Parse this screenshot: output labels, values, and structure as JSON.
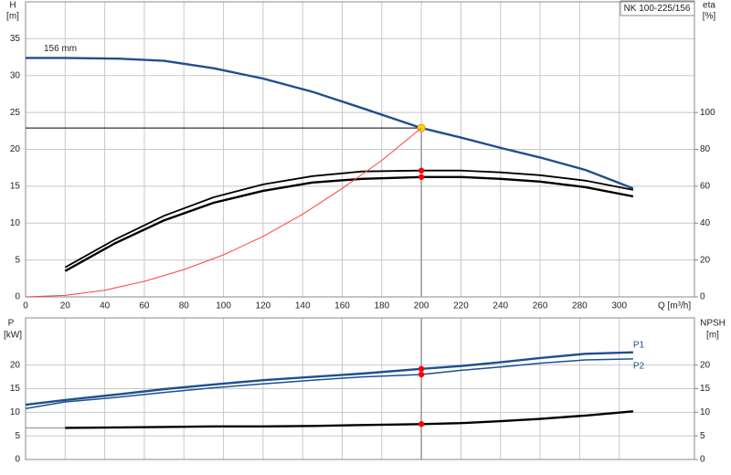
{
  "chart_data": [
    {
      "type": "line",
      "title": "NK 100-225/156",
      "ylabel": "H",
      "yunit": "[m]",
      "y2label": "eta",
      "y2unit": "[%]",
      "xlabel": "Q [m³/h]",
      "xlim": [
        0,
        338
      ],
      "xticks": [
        0,
        20,
        40,
        60,
        80,
        100,
        120,
        140,
        160,
        180,
        200,
        220,
        240,
        260,
        280,
        300
      ],
      "ylim": [
        0,
        40
      ],
      "yticks": [
        0,
        5,
        10,
        15,
        20,
        25,
        30,
        35
      ],
      "y2lim": [
        0,
        160
      ],
      "y2ticks": [
        0,
        20,
        40,
        60,
        80,
        100
      ],
      "grid": true,
      "operating_point": {
        "x": 200
      },
      "series": [
        {
          "name": "156 mm",
          "color": "#1f4f8f",
          "point_color": "#ffd700",
          "x": [
            0,
            20,
            47,
            70,
            95,
            120,
            145,
            170,
            200,
            220,
            240,
            260,
            283,
            307
          ],
          "values": [
            32.4,
            32.4,
            32.3,
            32.0,
            31.0,
            29.6,
            27.8,
            25.6,
            22.9,
            21.6,
            20.2,
            18.9,
            17.2,
            14.7
          ]
        },
        {
          "color": "#000000",
          "axis": "y2",
          "point_color": "#ff0000",
          "x": [
            20,
            45,
            70,
            95,
            120,
            145,
            170,
            200,
            220,
            240,
            260,
            283,
            307
          ],
          "values": [
            16,
            31,
            44,
            54,
            61,
            65.5,
            68,
            68.5,
            68.5,
            67.5,
            66,
            63,
            58
          ]
        },
        {
          "color": "#000000",
          "axis": "y2",
          "point_color": "#ff0000",
          "x": [
            20,
            45,
            70,
            95,
            120,
            145,
            170,
            200,
            220,
            240,
            260,
            283,
            307
          ],
          "values": [
            14,
            29,
            41.5,
            51,
            57.5,
            62,
            64,
            65,
            65,
            64,
            62.5,
            59.5,
            54.5
          ]
        },
        {
          "color": "#ff4040",
          "x": [
            0,
            20,
            40,
            60,
            80,
            100,
            120,
            140,
            160,
            180,
            200
          ],
          "values": [
            0,
            0.2,
            0.9,
            2.1,
            3.7,
            5.7,
            8.2,
            11.2,
            14.7,
            18.5,
            22.9
          ]
        }
      ]
    },
    {
      "type": "line",
      "ylabel": "P",
      "yunit": "[kW]",
      "y2label": "NPSH",
      "y2unit": "[m]",
      "xlim": [
        0,
        338
      ],
      "xticks": [
        0,
        20,
        40,
        60,
        80,
        100,
        120,
        140,
        160,
        180,
        200,
        220,
        240,
        260,
        280,
        300
      ],
      "xtick_labels": false,
      "ylim": [
        0,
        30
      ],
      "yticks": [
        0,
        5,
        10,
        15,
        20
      ],
      "y2lim": [
        0,
        30
      ],
      "y2ticks": [
        0,
        5,
        10,
        15,
        20
      ],
      "grid": true,
      "operating_point": {
        "x": 200
      },
      "series": [
        {
          "name": "P1",
          "color": "#1f4f8f",
          "point_color": "#ff0000",
          "x": [
            0,
            20,
            47,
            70,
            95,
            120,
            145,
            170,
            200,
            220,
            240,
            260,
            283,
            307
          ],
          "values": [
            11.6,
            12.6,
            13.8,
            14.9,
            15.9,
            16.8,
            17.5,
            18.2,
            19.2,
            19.8,
            20.6,
            21.5,
            22.4,
            22.7
          ]
        },
        {
          "name": "P2",
          "color": "#1f4f8f",
          "point_color": "#ff0000",
          "x": [
            0,
            20,
            47,
            70,
            95,
            120,
            145,
            170,
            200,
            220,
            240,
            260,
            283,
            307
          ],
          "values": [
            10.8,
            12.2,
            13.2,
            14.2,
            15.2,
            16.0,
            16.8,
            17.5,
            18.0,
            18.9,
            19.6,
            20.4,
            21.1,
            21.3
          ]
        },
        {
          "color": "#000000",
          "axis": "y2",
          "point_color": "#ff0000",
          "x": [
            20,
            47,
            70,
            95,
            120,
            145,
            170,
            200,
            220,
            240,
            260,
            283,
            307
          ],
          "values": [
            6.7,
            6.8,
            6.9,
            7.0,
            7.0,
            7.1,
            7.3,
            7.5,
            7.7,
            8.1,
            8.6,
            9.3,
            10.2
          ]
        }
      ]
    }
  ]
}
